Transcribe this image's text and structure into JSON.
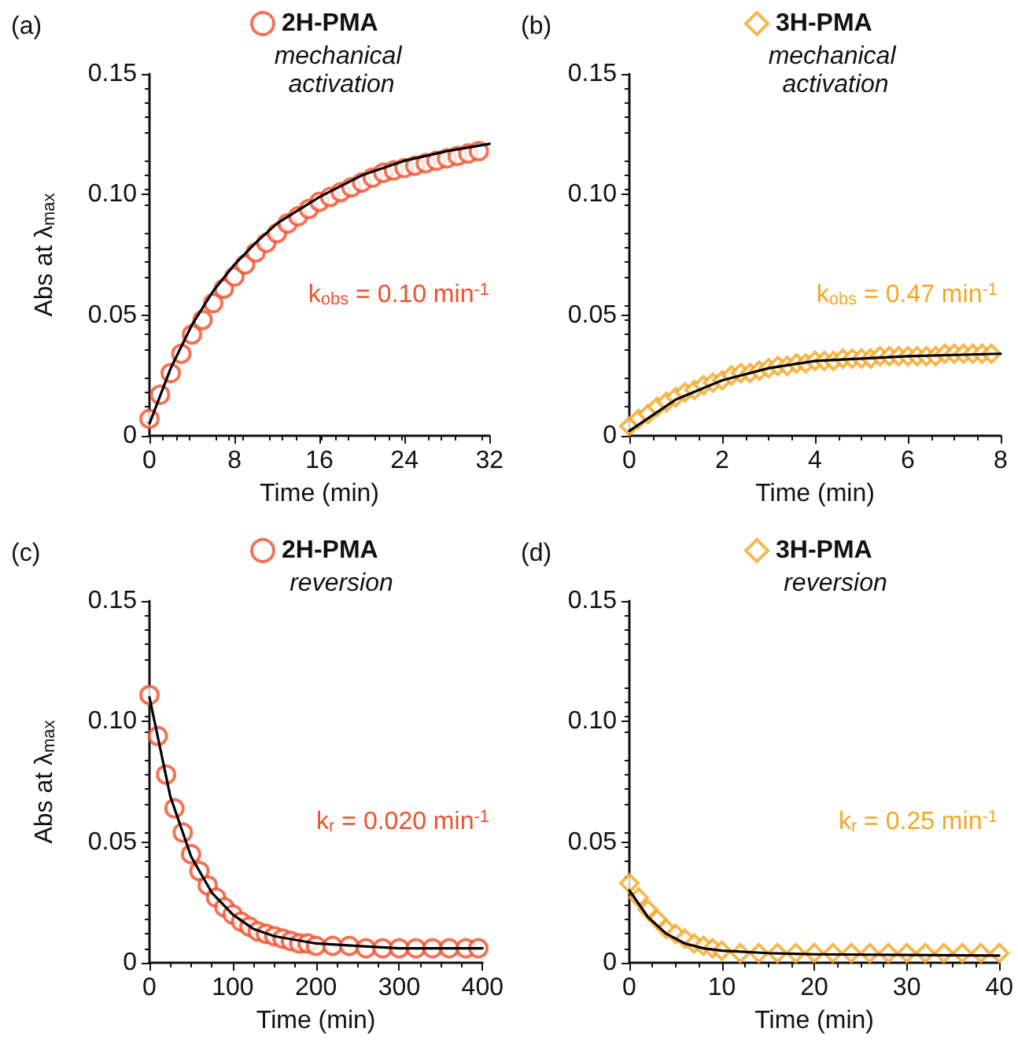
{
  "chart_data": [
    {
      "type": "scatter",
      "title": "(a)",
      "subtitle": "mechanical activation",
      "ylabel": "Abs at λ$_{max}$",
      "xlabel": "Time (min)",
      "xlim": [
        0,
        32
      ],
      "xticks": [
        0,
        8,
        16,
        24,
        32
      ],
      "ylim": [
        0,
        0.15
      ],
      "yticks": [
        {
          "value": 0,
          "label": "0"
        },
        {
          "value": 0.05,
          "label": "0.05"
        },
        {
          "value": 0.1,
          "label": "0.10"
        },
        {
          "value": 0.15,
          "label": "0.15"
        }
      ],
      "grid": false,
      "legend": "top",
      "marker": "circle",
      "annotations": [
        "k$_{obs}$ = 0.10 min$^{-1}$"
      ],
      "series": [
        {
          "name": "2H-PMA",
          "type": "scatter",
          "color": "#f0502d",
          "x": [
            0,
            1,
            2,
            3,
            4,
            5,
            6,
            7,
            8,
            9,
            10,
            11,
            12,
            13,
            14,
            15,
            16,
            17,
            18,
            19,
            20,
            21,
            22,
            23,
            24,
            25,
            26,
            27,
            28,
            29,
            30,
            31
          ],
          "values": [
            0.007,
            0.017,
            0.026,
            0.034,
            0.042,
            0.048,
            0.055,
            0.061,
            0.066,
            0.071,
            0.076,
            0.08,
            0.084,
            0.088,
            0.091,
            0.094,
            0.097,
            0.099,
            0.101,
            0.103,
            0.105,
            0.107,
            0.109,
            0.11,
            0.111,
            0.112,
            0.113,
            0.114,
            0.115,
            0.116,
            0.117,
            0.118
          ]
        },
        {
          "type": "line",
          "color": "#000000",
          "marker": "none",
          "x": [
            0,
            2,
            4,
            6,
            8,
            10,
            12,
            16,
            20,
            24,
            28,
            32
          ],
          "values": [
            0.005,
            0.028,
            0.046,
            0.06,
            0.071,
            0.08,
            0.088,
            0.099,
            0.108,
            0.114,
            0.118,
            0.121
          ]
        }
      ]
    },
    {
      "type": "scatter",
      "title": "(b)",
      "subtitle": "mechanical activation",
      "xlabel": "Time (min)",
      "xlim": [
        0,
        8
      ],
      "xticks": [
        0,
        2,
        4,
        6,
        8
      ],
      "ylim": [
        0,
        0.15
      ],
      "yticks": [
        {
          "value": 0,
          "label": "0"
        },
        {
          "value": 0.05,
          "label": "0.05"
        },
        {
          "value": 0.1,
          "label": "0.10"
        },
        {
          "value": 0.15,
          "label": "0.15"
        }
      ],
      "grid": false,
      "legend": "top",
      "marker": "diamond",
      "annotations": [
        "k$_{obs}$ = 0.47 min$^{-1}$"
      ],
      "series": [
        {
          "name": "3H-PMA",
          "type": "scatter",
          "color": "#f5a623",
          "x": [
            0,
            0.2,
            0.4,
            0.6,
            0.8,
            1.0,
            1.2,
            1.4,
            1.6,
            1.8,
            2.0,
            2.2,
            2.4,
            2.6,
            2.8,
            3.0,
            3.2,
            3.4,
            3.6,
            3.8,
            4.0,
            4.2,
            4.4,
            4.6,
            4.8,
            5.0,
            5.2,
            5.4,
            5.6,
            5.8,
            6.0,
            6.2,
            6.4,
            6.6,
            6.8,
            7.0,
            7.2,
            7.4,
            7.6,
            7.8
          ],
          "values": [
            0.004,
            0.007,
            0.009,
            0.012,
            0.014,
            0.016,
            0.018,
            0.019,
            0.021,
            0.022,
            0.023,
            0.025,
            0.026,
            0.026,
            0.027,
            0.028,
            0.029,
            0.029,
            0.03,
            0.03,
            0.031,
            0.031,
            0.031,
            0.032,
            0.032,
            0.032,
            0.032,
            0.033,
            0.033,
            0.033,
            0.033,
            0.033,
            0.033,
            0.033,
            0.034,
            0.034,
            0.034,
            0.034,
            0.034,
            0.034
          ]
        },
        {
          "type": "line",
          "color": "#000000",
          "marker": "none",
          "x": [
            0,
            1,
            2,
            3,
            4,
            5,
            6,
            7,
            8
          ],
          "values": [
            0.002,
            0.015,
            0.023,
            0.028,
            0.031,
            0.032,
            0.033,
            0.0335,
            0.034
          ]
        }
      ]
    },
    {
      "type": "scatter",
      "title": "(c)",
      "subtitle": "reversion",
      "ylabel": "Abs at λ$_{max}$",
      "xlabel": "Time (min)",
      "xlim": [
        0,
        400
      ],
      "xticks": [
        0,
        100,
        200,
        300,
        400
      ],
      "ylim": [
        0,
        0.15
      ],
      "yticks": [
        {
          "value": 0,
          "label": "0"
        },
        {
          "value": 0.05,
          "label": "0.05"
        },
        {
          "value": 0.1,
          "label": "0.10"
        },
        {
          "value": 0.15,
          "label": "0.15"
        }
      ],
      "grid": false,
      "legend": "top",
      "marker": "circle",
      "annotations": [
        "k$_{r}$ = 0.020 min$^{-1}$"
      ],
      "series": [
        {
          "name": "2H-PMA",
          "type": "scatter",
          "color": "#f0502d",
          "x": [
            0,
            10,
            20,
            30,
            40,
            50,
            60,
            70,
            80,
            90,
            100,
            110,
            120,
            130,
            140,
            150,
            160,
            170,
            180,
            190,
            200,
            220,
            240,
            260,
            280,
            300,
            320,
            340,
            360,
            380,
            395
          ],
          "values": [
            0.111,
            0.094,
            0.078,
            0.064,
            0.054,
            0.045,
            0.038,
            0.032,
            0.027,
            0.023,
            0.02,
            0.017,
            0.015,
            0.013,
            0.012,
            0.011,
            0.01,
            0.009,
            0.008,
            0.008,
            0.007,
            0.007,
            0.007,
            0.006,
            0.006,
            0.006,
            0.006,
            0.006,
            0.006,
            0.006,
            0.006
          ]
        },
        {
          "type": "line",
          "color": "#000000",
          "marker": "none",
          "x": [
            0,
            25,
            50,
            75,
            100,
            125,
            150,
            200,
            250,
            300,
            400
          ],
          "values": [
            0.11,
            0.069,
            0.044,
            0.029,
            0.02,
            0.014,
            0.011,
            0.008,
            0.007,
            0.006,
            0.006
          ]
        }
      ]
    },
    {
      "type": "scatter",
      "title": "(d)",
      "subtitle": "reversion",
      "xlabel": "Time (min)",
      "xlim": [
        0,
        40
      ],
      "xticks": [
        0,
        10,
        20,
        30,
        40
      ],
      "ylim": [
        0,
        0.15
      ],
      "yticks": [
        {
          "value": 0,
          "label": "0"
        },
        {
          "value": 0.05,
          "label": "0.05"
        },
        {
          "value": 0.1,
          "label": "0.10"
        },
        {
          "value": 0.15,
          "label": "0.15"
        }
      ],
      "grid": false,
      "legend": "top",
      "marker": "diamond",
      "annotations": [
        "k$_{r}$ = 0.25 min$^{-1}$"
      ],
      "series": [
        {
          "name": "3H-PMA",
          "type": "scatter",
          "color": "#f5a623",
          "x": [
            0,
            1,
            2,
            3,
            4,
            5,
            6,
            7,
            8,
            9,
            10,
            12,
            14,
            16,
            18,
            20,
            22,
            24,
            26,
            28,
            30,
            32,
            34,
            36,
            38,
            40
          ],
          "values": [
            0.033,
            0.027,
            0.022,
            0.018,
            0.014,
            0.012,
            0.01,
            0.008,
            0.007,
            0.006,
            0.005,
            0.004,
            0.004,
            0.004,
            0.004,
            0.004,
            0.004,
            0.004,
            0.004,
            0.004,
            0.004,
            0.004,
            0.004,
            0.004,
            0.004,
            0.004
          ]
        },
        {
          "type": "line",
          "color": "#000000",
          "marker": "none",
          "x": [
            0,
            2,
            4,
            6,
            8,
            10,
            15,
            20,
            40
          ],
          "values": [
            0.03,
            0.019,
            0.012,
            0.008,
            0.006,
            0.005,
            0.004,
            0.0035,
            0.003
          ]
        }
      ]
    }
  ]
}
